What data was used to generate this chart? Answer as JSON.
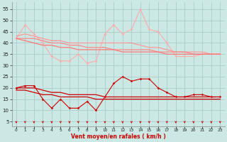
{
  "background_color": "#cce8e4",
  "grid_color": "#aacccc",
  "xlabel": "Vent moyen/en rafales ( km/h )",
  "xlabel_color": "#cc0000",
  "ylabel_ticks": [
    5,
    10,
    15,
    20,
    25,
    30,
    35,
    40,
    45,
    50,
    55
  ],
  "ylim": [
    3,
    58
  ],
  "xlim": [
    -0.5,
    23.5
  ],
  "x_labels": [
    "0",
    "1",
    "2",
    "3",
    "4",
    "5",
    "6",
    "7",
    "8",
    "9",
    "10",
    "11",
    "12",
    "13",
    "14",
    "15",
    "16",
    "17",
    "18",
    "19",
    "20",
    "21",
    "22",
    "23"
  ],
  "arrow_color": "#cc0000",
  "line1_color": "#ffaaaa",
  "line1_marker": "D",
  "line1_data": [
    42,
    48,
    44,
    40,
    34,
    32,
    32,
    35,
    31,
    32,
    44,
    48,
    44,
    46,
    55,
    46,
    45,
    40,
    34,
    34,
    34,
    35,
    35,
    35
  ],
  "line2_color": "#ff9999",
  "line2_data": [
    43,
    44,
    43,
    42,
    41,
    41,
    40,
    40,
    40,
    40,
    40,
    40,
    40,
    40,
    39,
    38,
    38,
    37,
    36,
    36,
    36,
    36,
    35,
    35
  ],
  "line3_color": "#ff8888",
  "line3_data": [
    42,
    42,
    42,
    41,
    40,
    40,
    39,
    39,
    38,
    38,
    38,
    37,
    37,
    37,
    37,
    37,
    36,
    36,
    36,
    36,
    35,
    35,
    35,
    35
  ],
  "line4_color": "#ff7777",
  "line4_data": [
    42,
    41,
    40,
    39,
    39,
    38,
    38,
    37,
    37,
    37,
    37,
    37,
    36,
    36,
    36,
    36,
    36,
    35,
    35,
    35,
    35,
    35,
    35,
    35
  ],
  "line5_color": "#cc0000",
  "line5_marker": "D",
  "line5_data": [
    20,
    21,
    21,
    15,
    11,
    15,
    11,
    11,
    14,
    10,
    16,
    22,
    25,
    23,
    24,
    24,
    20,
    18,
    16,
    16,
    17,
    17,
    16,
    16
  ],
  "line6_color": "#cc0000",
  "line6_data": [
    20,
    20,
    20,
    19,
    18,
    18,
    17,
    17,
    17,
    17,
    16,
    16,
    16,
    16,
    16,
    16,
    16,
    16,
    16,
    16,
    16,
    16,
    16,
    16
  ],
  "line7_color": "#cc0000",
  "line7_data": [
    19,
    19,
    18,
    17,
    17,
    16,
    16,
    16,
    16,
    15,
    15,
    15,
    15,
    15,
    15,
    15,
    15,
    15,
    15,
    15,
    15,
    15,
    15,
    15
  ]
}
